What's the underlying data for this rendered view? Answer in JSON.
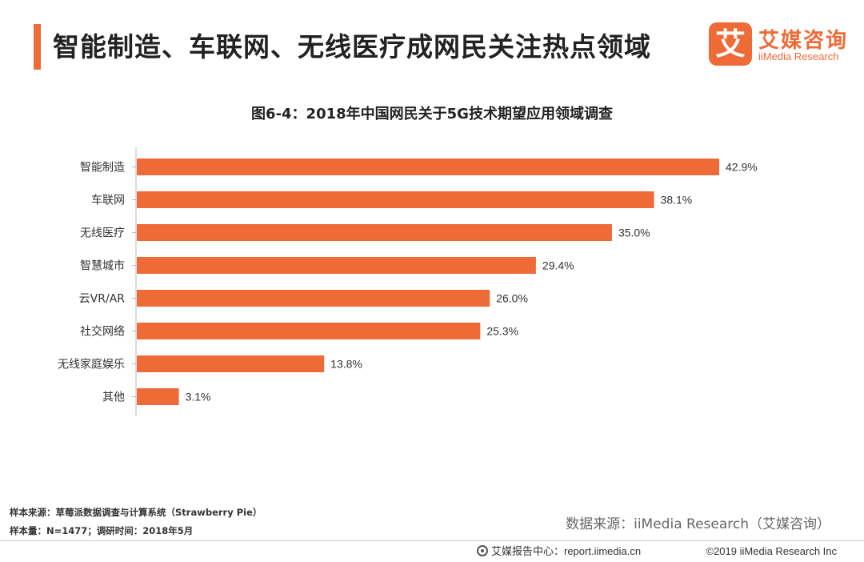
{
  "header": {
    "title": "智能制造、车联网、无线医疗成网民关注热点领域",
    "accent_color": "#ee6a37"
  },
  "logo": {
    "mark": "艾",
    "name_cn": "艾媒咨询",
    "name_en": "iiMedia Research"
  },
  "chart_data": {
    "type": "bar",
    "orientation": "horizontal",
    "title": "图6-4：2018年中国网民关于5G技术期望应用领域调查",
    "categories": [
      "智能制造",
      "车联网",
      "无线医疗",
      "智慧城市",
      "云VR/AR",
      "社交网络",
      "无线家庭娱乐",
      "其他"
    ],
    "values": [
      42.9,
      38.1,
      35.0,
      29.4,
      26.0,
      25.3,
      13.8,
      3.1
    ],
    "value_labels": [
      "42.9%",
      "38.1%",
      "35.0%",
      "29.4%",
      "26.0%",
      "25.3%",
      "13.8%",
      "3.1%"
    ],
    "unit": "%",
    "bar_color": "#ee6a37",
    "grid": false,
    "legend": "none"
  },
  "notes": {
    "sample_source": "样本来源：草莓派数据调查与计算系统（Strawberry  Pie）",
    "sample_size": "样本量：N=1477；调研时间：2018年5月"
  },
  "source": "数据来源：iiMedia Research（艾媒咨询）",
  "footer": {
    "left": "艾媒报告中心：report.iimedia.cn",
    "right": "©2019  iiMedia Research  Inc"
  }
}
